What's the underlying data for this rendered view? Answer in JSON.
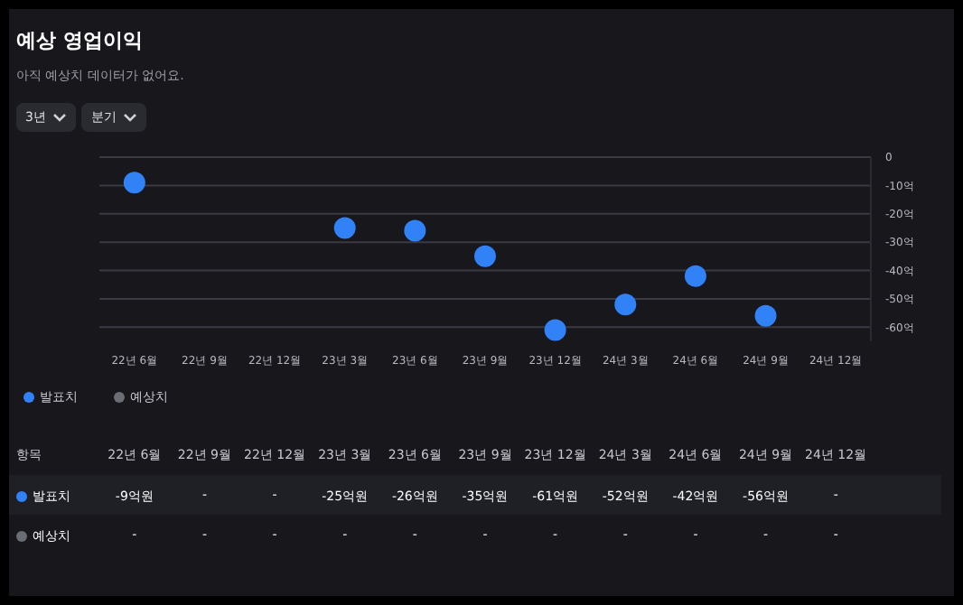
{
  "chart_data": {
    "type": "scatter",
    "title": "예상 영업이익",
    "subtitle": "아직 예상치 데이터가 없어요.",
    "annotations": [
      "3년",
      "분기",
      "항목"
    ],
    "categories": [
      "22년 6월",
      "22년 9월",
      "22년 12월",
      "23년 3월",
      "23년 6월",
      "23년 9월",
      "23년 12월",
      "24년 3월",
      "24년 6월",
      "24년 9월",
      "24년 12월"
    ],
    "series": [
      {
        "name": "발표치",
        "color": "#3182f6",
        "values": [
          -9,
          null,
          null,
          -25,
          -26,
          -35,
          -61,
          -52,
          -42,
          -56,
          null
        ],
        "value_labels": [
          "-9억원",
          "-",
          "-",
          "-25억원",
          "-26억원",
          "-35억원",
          "-61억원",
          "-52억원",
          "-42억원",
          "-56억원",
          "-"
        ]
      },
      {
        "name": "예상치",
        "color": "#6b6d75",
        "values": [
          null,
          null,
          null,
          null,
          null,
          null,
          null,
          null,
          null,
          null,
          null
        ],
        "value_labels": [
          "-",
          "-",
          "-",
          "-",
          "-",
          "-",
          "-",
          "-",
          "-",
          "-",
          "-"
        ]
      }
    ],
    "ylim": [
      -65,
      0
    ],
    "yticks": [
      0,
      {
        "value": -10,
        "label": "-10억"
      },
      {
        "value": -20,
        "label": "-20억"
      },
      {
        "value": -30,
        "label": "-30억"
      },
      {
        "value": -40,
        "label": "-40억"
      },
      {
        "value": -50,
        "label": "-50억"
      },
      {
        "value": -60,
        "label": "-60억"
      }
    ],
    "grid": "y",
    "legend": "bottom left",
    "marker": "circle"
  }
}
